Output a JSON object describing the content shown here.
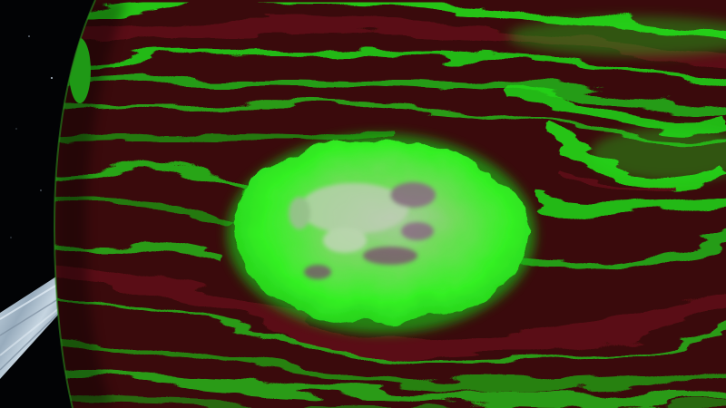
{
  "scene": {
    "subject": "gas-giant-storm",
    "colors": {
      "space": "#020305",
      "planet_band_dark": "#3a0a0c",
      "planet_band_mid": "#5a1014",
      "band_green": "#22d81a",
      "storm_core": "#34f024",
      "storm_highlight": "#b8c8b0",
      "storm_shadow": "#7a4a70",
      "ring_light": "#c8dceb",
      "ring_shadow": "#7e94a8",
      "limb_glow": "#2a8a1a"
    }
  }
}
